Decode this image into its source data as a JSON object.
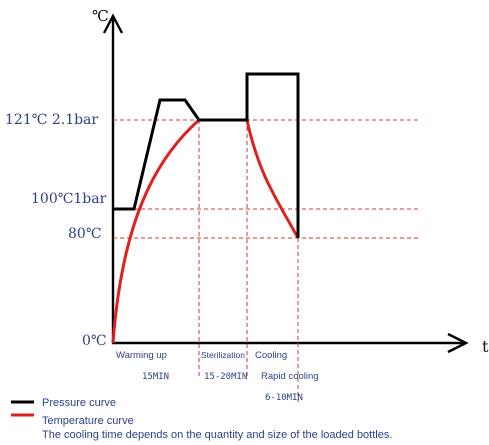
{
  "chart_data": {
    "type": "line",
    "axis_units": {
      "y": "℃",
      "x": "t"
    },
    "y_level_labels": [
      "0℃",
      "80℃",
      "100℃1bar",
      "121℃ 2.1bar"
    ],
    "phases": [
      "Warming up",
      "Sterilization",
      "Cooling",
      "Rapid cooling"
    ],
    "durations": [
      "15MIN",
      "15-20MIN",
      "6-10MIN"
    ],
    "series": [
      {
        "name": "Pressure curve",
        "color": "#000000",
        "points": [
          [
            0,
            100
          ],
          [
            1,
            100
          ],
          [
            2,
            121
          ],
          [
            3,
            121
          ],
          [
            3.6,
            121
          ],
          [
            4.8,
            121
          ],
          [
            4.8,
            121
          ],
          [
            4.8,
            124
          ],
          [
            5.9,
            124
          ],
          [
            5.9,
            80
          ]
        ]
      },
      {
        "name": "Temperature curve",
        "color": "#e02020",
        "points": [
          [
            0,
            0
          ],
          [
            3.6,
            121
          ],
          [
            4.8,
            121
          ],
          [
            5.9,
            80
          ]
        ]
      }
    ],
    "legend_position": "bottom-left",
    "note": "The cooling time depends on the quantity and size of the loaded bottles."
  },
  "legend": {
    "pressure_label": "Pressure curve",
    "temperature_label": "Temperature curve",
    "note": "The cooling time depends on the quantity and size of the loaded bottles."
  }
}
